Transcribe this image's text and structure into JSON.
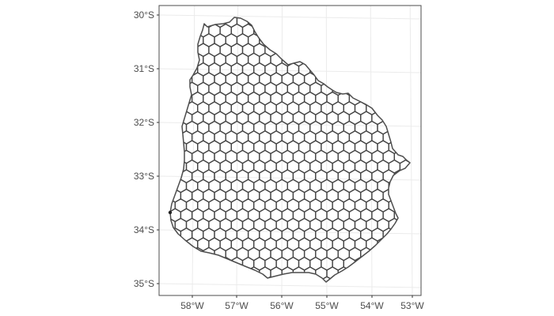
{
  "map": {
    "country": "Uruguay",
    "grid": "hexagonal",
    "panel_background": "#ffffff",
    "panel_border_color": "#4d4d4d",
    "graticule_color": "#ebebeb",
    "outline_color": "#4d4d4d",
    "hex_stroke_color": "#444444",
    "x_axis": {
      "ticks": [
        {
          "value": -58,
          "label": "58°W"
        },
        {
          "value": -57,
          "label": "57°W"
        },
        {
          "value": -56,
          "label": "56°W"
        },
        {
          "value": -55,
          "label": "55°W"
        },
        {
          "value": -54,
          "label": "54°W"
        },
        {
          "value": -53,
          "label": "53°W"
        }
      ]
    },
    "y_axis": {
      "ticks": [
        {
          "value": -30,
          "label": "30°S"
        },
        {
          "value": -31,
          "label": "31°S"
        },
        {
          "value": -32,
          "label": "32°S"
        },
        {
          "value": -33,
          "label": "33°S"
        },
        {
          "value": -34,
          "label": "34°S"
        },
        {
          "value": -35,
          "label": "35°S"
        }
      ]
    }
  }
}
